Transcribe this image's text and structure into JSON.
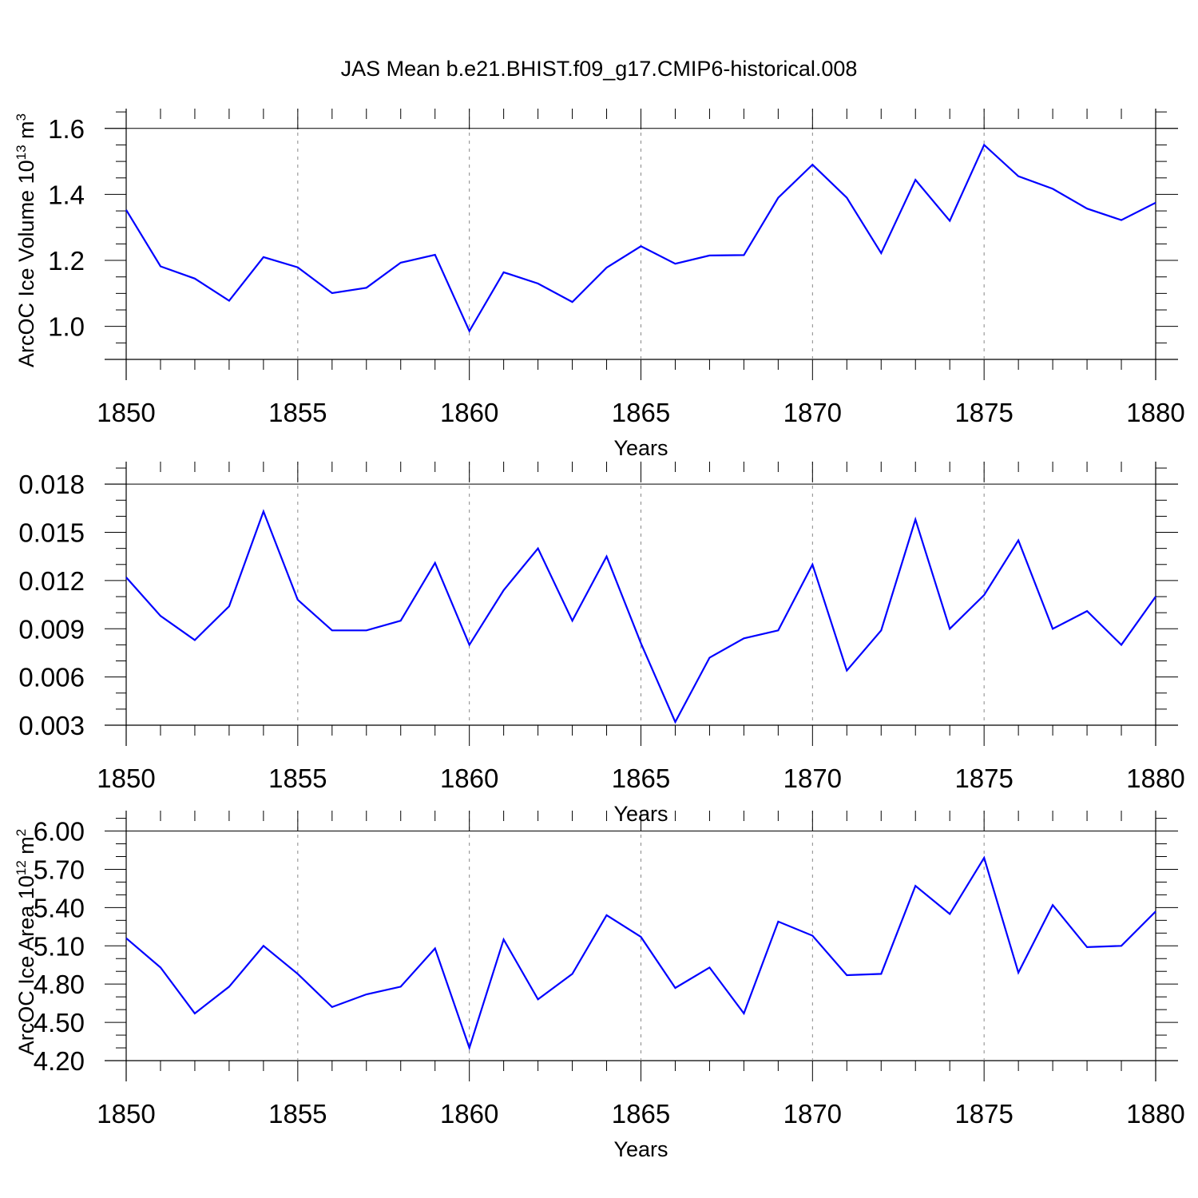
{
  "title": "JAS Mean b.e21.BHIST.f09_g17.CMIP6-historical.008",
  "line_color": "#0000ff",
  "chart_data": [
    {
      "type": "line",
      "id": "volume",
      "ylabel": "ArcOC Ice Volume 10",
      "ylabel_sup": "13",
      "ylabel_unit": " m",
      "ylabel_unit_sup": "3",
      "xlabel": "Years",
      "xlim": [
        1850,
        1880
      ],
      "ylim": [
        0.9,
        1.66
      ],
      "yticks": [
        1.0,
        1.2,
        1.4,
        1.6
      ],
      "ytick_labels": [
        "1.0",
        "1.2",
        "1.4",
        "1.6"
      ],
      "yminor_step": 0.05,
      "xticks": [
        1850,
        1855,
        1860,
        1865,
        1870,
        1875,
        1880
      ],
      "xtick_labels": [
        "1850",
        "1855",
        "1860",
        "1865",
        "1870",
        "1875",
        "1880"
      ],
      "x": [
        1850,
        1851,
        1852,
        1853,
        1854,
        1855,
        1856,
        1857,
        1858,
        1859,
        1860,
        1861,
        1862,
        1863,
        1864,
        1865,
        1866,
        1867,
        1868,
        1869,
        1870,
        1871,
        1872,
        1873,
        1874,
        1875,
        1876,
        1877,
        1878,
        1879,
        1880
      ],
      "values": [
        1.353,
        1.182,
        1.145,
        1.078,
        1.21,
        1.179,
        1.101,
        1.117,
        1.193,
        1.217,
        0.986,
        1.164,
        1.13,
        1.074,
        1.178,
        1.243,
        1.19,
        1.215,
        1.216,
        1.39,
        1.49,
        1.39,
        1.222,
        1.444,
        1.32,
        1.55,
        1.455,
        1.417,
        1.357,
        1.322,
        1.375
      ]
    },
    {
      "type": "line",
      "id": "middle",
      "ylabel": "",
      "xlabel": "Years",
      "xlim": [
        1850,
        1880
      ],
      "ylim": [
        0.003,
        0.0194
      ],
      "yticks": [
        0.003,
        0.006,
        0.009,
        0.012,
        0.015,
        0.018
      ],
      "ytick_labels": [
        "0.003",
        "0.006",
        "0.009",
        "0.012",
        "0.015",
        "0.018"
      ],
      "yminor_step": 0.001,
      "xticks": [
        1850,
        1855,
        1860,
        1865,
        1870,
        1875,
        1880
      ],
      "xtick_labels": [
        "1850",
        "1855",
        "1860",
        "1865",
        "1870",
        "1875",
        "1880"
      ],
      "x": [
        1850,
        1851,
        1852,
        1853,
        1854,
        1855,
        1856,
        1857,
        1858,
        1859,
        1860,
        1861,
        1862,
        1863,
        1864,
        1865,
        1866,
        1867,
        1868,
        1869,
        1870,
        1871,
        1872,
        1873,
        1874,
        1875,
        1876,
        1877,
        1878,
        1879,
        1880
      ],
      "values": [
        0.0122,
        0.0098,
        0.0083,
        0.0104,
        0.0163,
        0.0108,
        0.0089,
        0.0089,
        0.0095,
        0.0131,
        0.008,
        0.0114,
        0.014,
        0.0095,
        0.0135,
        0.0081,
        0.0032,
        0.0072,
        0.0084,
        0.0089,
        0.013,
        0.0064,
        0.0089,
        0.0158,
        0.009,
        0.0111,
        0.0145,
        0.009,
        0.0101,
        0.008,
        0.011
      ]
    },
    {
      "type": "line",
      "id": "area",
      "ylabel": "ArcOC Ice Area 10",
      "ylabel_sup": "12",
      "ylabel_unit": " m",
      "ylabel_unit_sup": "2",
      "xlabel": "Years",
      "xlim": [
        1850,
        1880
      ],
      "ylim": [
        4.2,
        6.16
      ],
      "yticks": [
        4.2,
        4.5,
        4.8,
        5.1,
        5.4,
        5.7,
        6.0
      ],
      "ytick_labels": [
        "4.20",
        "4.50",
        "4.80",
        "5.10",
        "5.40",
        "5.70",
        "6.00"
      ],
      "yminor_step": 0.1,
      "xticks": [
        1850,
        1855,
        1860,
        1865,
        1870,
        1875,
        1880
      ],
      "xtick_labels": [
        "1850",
        "1855",
        "1860",
        "1865",
        "1870",
        "1875",
        "1880"
      ],
      "x": [
        1850,
        1851,
        1852,
        1853,
        1854,
        1855,
        1856,
        1857,
        1858,
        1859,
        1860,
        1861,
        1862,
        1863,
        1864,
        1865,
        1866,
        1867,
        1868,
        1869,
        1870,
        1871,
        1872,
        1873,
        1874,
        1875,
        1876,
        1877,
        1878,
        1879,
        1880
      ],
      "values": [
        5.16,
        4.93,
        4.57,
        4.78,
        5.1,
        4.88,
        4.62,
        4.72,
        4.78,
        5.08,
        4.3,
        5.15,
        4.68,
        4.88,
        5.34,
        5.17,
        4.77,
        4.93,
        4.57,
        5.29,
        5.18,
        4.87,
        4.88,
        5.57,
        5.35,
        5.79,
        4.89,
        5.42,
        5.09,
        5.1,
        5.37
      ]
    }
  ]
}
